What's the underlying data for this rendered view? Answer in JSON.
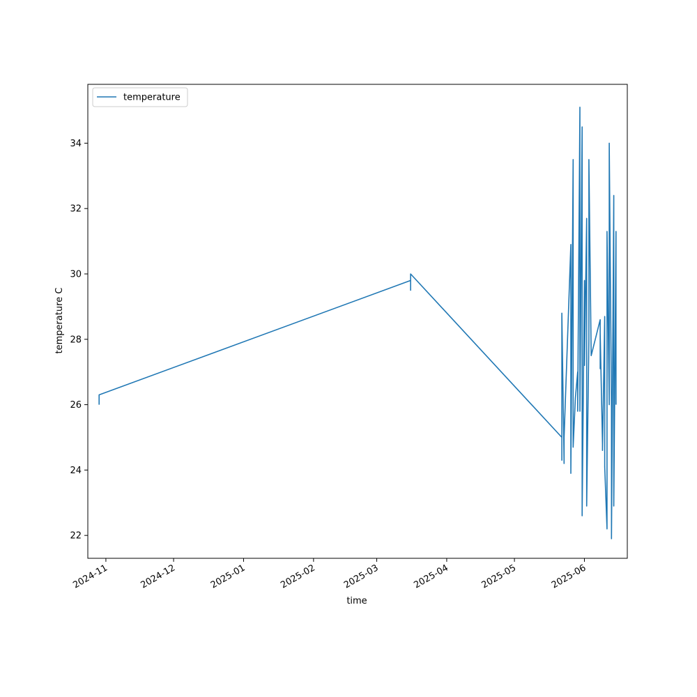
{
  "colors": {
    "series": "#1f77b4",
    "axis": "#000000",
    "legend_border": "#cccccc"
  },
  "chart_data": {
    "type": "line",
    "title": "",
    "xlabel": "time",
    "ylabel": "temperature C",
    "x_type": "date",
    "xlim": [
      "2024-10-24",
      "2025-06-20"
    ],
    "ylim": [
      21.3,
      35.8
    ],
    "grid": false,
    "legend": {
      "placement": "top-left"
    },
    "x_ticks": [
      "2024-11",
      "2024-12",
      "2025-01",
      "2025-02",
      "2025-03",
      "2025-04",
      "2025-05",
      "2025-06"
    ],
    "y_ticks": [
      "22",
      "24",
      "26",
      "28",
      "30",
      "32",
      "34"
    ],
    "series": [
      {
        "name": "temperature",
        "color": "#1f77b4",
        "points": [
          [
            "2024-10-29",
            26.0
          ],
          [
            "2024-10-29",
            26.3
          ],
          [
            "2025-03-16",
            29.8
          ],
          [
            "2025-03-16",
            29.5
          ],
          [
            "2025-03-16",
            30.0
          ],
          [
            "2025-05-22",
            25.0
          ],
          [
            "2025-05-22",
            24.3
          ],
          [
            "2025-05-22",
            28.8
          ],
          [
            "2025-05-23",
            24.2
          ],
          [
            "2025-05-23",
            25.0
          ],
          [
            "2025-05-26",
            30.9
          ],
          [
            "2025-05-26",
            23.9
          ],
          [
            "2025-05-27",
            33.5
          ],
          [
            "2025-05-27",
            24.7
          ],
          [
            "2025-05-28",
            26.2
          ],
          [
            "2025-05-29",
            27.0
          ],
          [
            "2025-05-29",
            25.8
          ],
          [
            "2025-05-30",
            35.1
          ],
          [
            "2025-05-30",
            25.8
          ],
          [
            "2025-05-31",
            34.5
          ],
          [
            "2025-05-31",
            22.6
          ],
          [
            "2025-06-01",
            29.8
          ],
          [
            "2025-06-01",
            27.2
          ],
          [
            "2025-06-02",
            31.7
          ],
          [
            "2025-06-02",
            22.9
          ],
          [
            "2025-06-03",
            28.0
          ],
          [
            "2025-06-03",
            33.5
          ],
          [
            "2025-06-04",
            27.5
          ],
          [
            "2025-06-08",
            28.6
          ],
          [
            "2025-06-08",
            27.1
          ],
          [
            "2025-06-08",
            28.2
          ],
          [
            "2025-06-09",
            24.8
          ],
          [
            "2025-06-09",
            24.6
          ],
          [
            "2025-06-10",
            28.7
          ],
          [
            "2025-06-10",
            24.1
          ],
          [
            "2025-06-11",
            22.2
          ],
          [
            "2025-06-11",
            31.3
          ],
          [
            "2025-06-12",
            26.0
          ],
          [
            "2025-06-12",
            34.0
          ],
          [
            "2025-06-13",
            25.9
          ],
          [
            "2025-06-13",
            21.9
          ],
          [
            "2025-06-14",
            32.4
          ],
          [
            "2025-06-14",
            22.9
          ],
          [
            "2025-06-15",
            31.3
          ],
          [
            "2025-06-15",
            26.0
          ]
        ]
      }
    ]
  }
}
